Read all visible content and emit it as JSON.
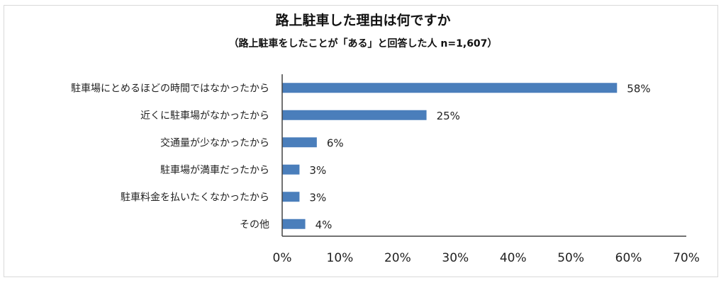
{
  "chart_data": {
    "type": "bar",
    "orientation": "horizontal",
    "title": "路上駐車した理由は何ですか",
    "subtitle": "（路上駐車をしたことが「ある」と回答した人 n=1,607）",
    "categories": [
      "駐車場にとめるほどの時間ではなかったから",
      "近くに駐車場がなかったから",
      "交通量が少なかったから",
      "駐車場が満車だったから",
      "駐車料金を払いたくなかったから",
      "その他"
    ],
    "values": [
      58,
      25,
      6,
      3,
      3,
      4
    ],
    "data_labels": [
      "58%",
      "25%",
      "6%",
      "3%",
      "3%",
      "4%"
    ],
    "xlim": [
      0,
      70
    ],
    "xticks": [
      "0%",
      "10%",
      "20%",
      "30%",
      "40%",
      "50%",
      "60%",
      "70%"
    ],
    "xlabel": "",
    "ylabel": "",
    "grid": false,
    "bar_color": "#4a7ebb"
  }
}
